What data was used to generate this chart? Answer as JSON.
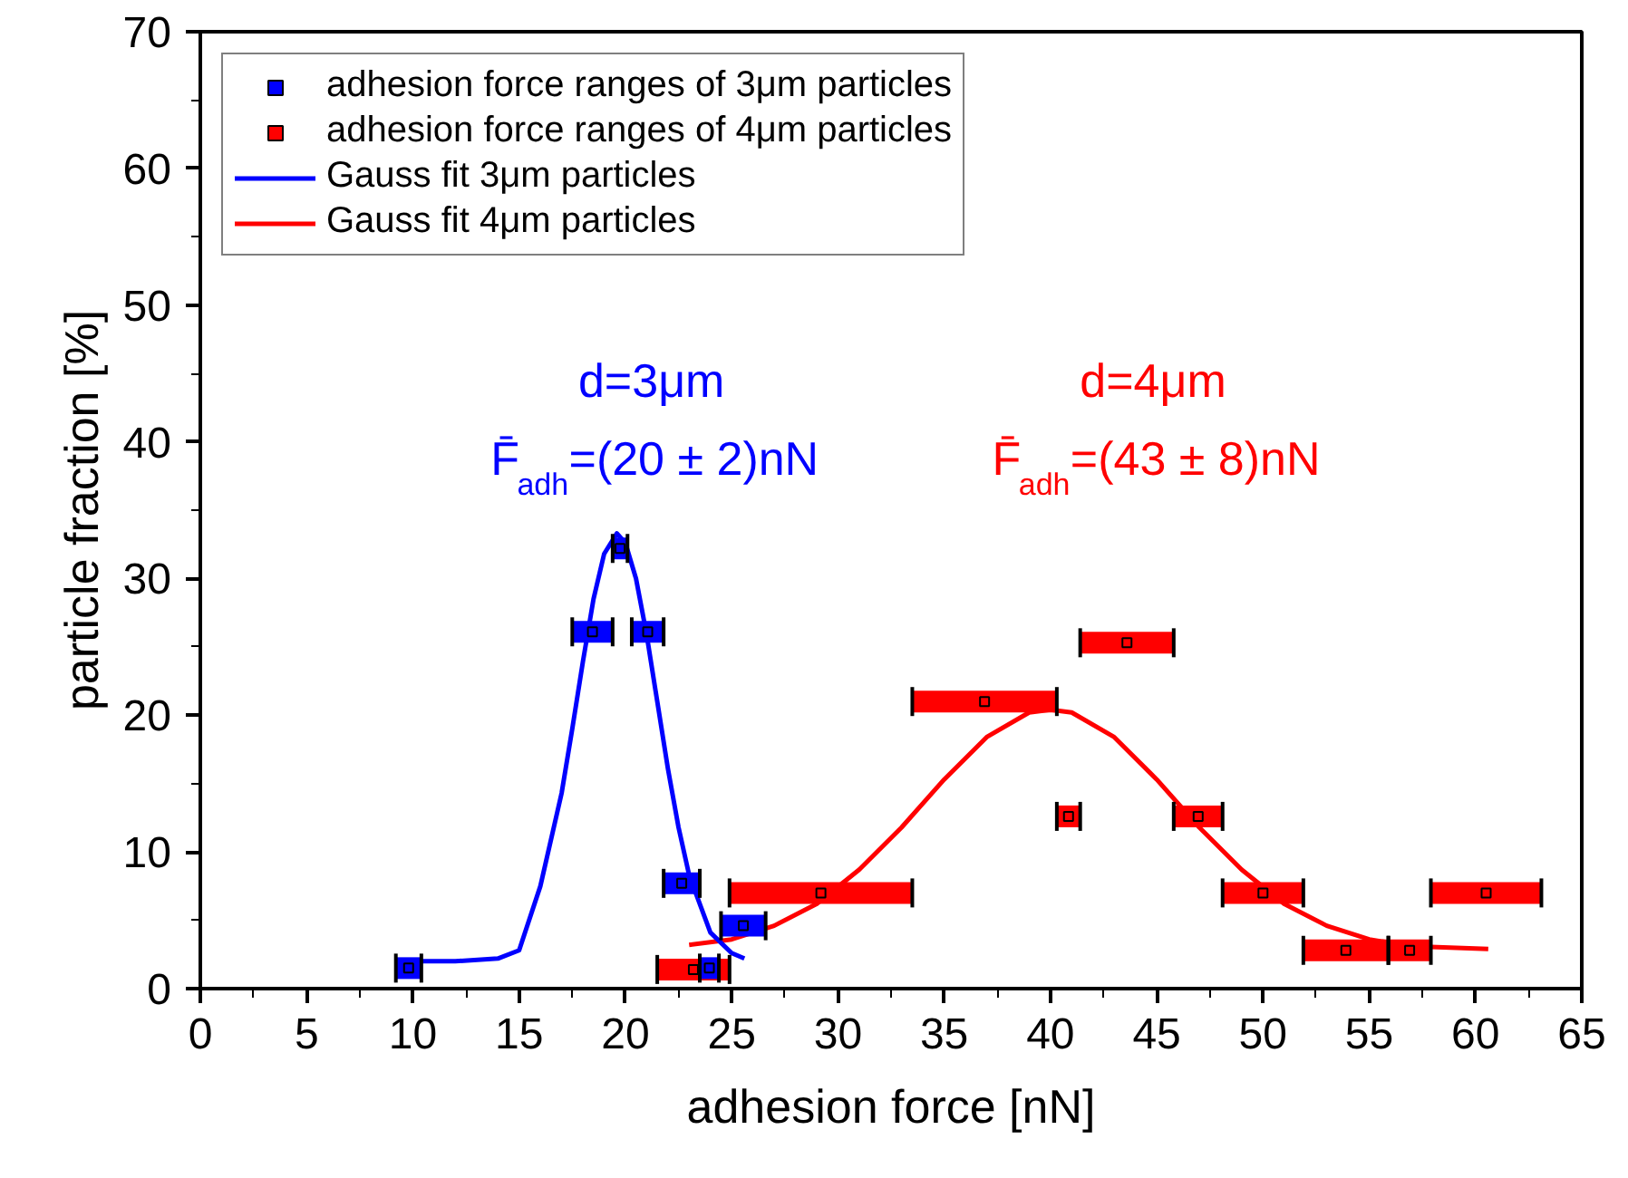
{
  "chart_data": {
    "type": "scatter",
    "xlabel": "adhesion force [nN]",
    "ylabel": "particle fraction [%]",
    "xlim": [
      0,
      65
    ],
    "xticks": [
      0,
      5,
      10,
      15,
      20,
      25,
      30,
      35,
      40,
      45,
      50,
      55,
      60,
      65
    ],
    "ylim": [
      0,
      70
    ],
    "yticks": [
      0,
      10,
      20,
      30,
      40,
      50,
      60,
      70
    ],
    "grid": false,
    "legend": "top left",
    "annotations": [
      "d=3μm",
      "F̄$_{adh}$=(20 ± 2)nN",
      "d=4μm",
      "F̄$_{adh}$=(43 ± 8)nN"
    ],
    "series": [
      {
        "name": "adhesion force ranges of 3μm particles",
        "marker": "square",
        "color": "#0000ff",
        "x": [
          9.8,
          18.45,
          19.75,
          21.05,
          22.65,
          25.55,
          23.95
        ],
        "values": [
          1.5,
          26.1,
          32.2,
          26.1,
          7.7,
          4.6,
          1.5
        ],
        "xerrors": [
          [
            9.2,
            10.4
          ],
          [
            17.5,
            19.4
          ],
          [
            19.4,
            20.1
          ],
          [
            20.3,
            21.8
          ],
          [
            21.8,
            23.5
          ],
          [
            24.5,
            26.6
          ],
          [
            23.5,
            24.4
          ]
        ]
      },
      {
        "name": "adhesion force ranges of 4μm particles",
        "marker": "square",
        "color": "#ff0000",
        "x": [
          23.2,
          29.2,
          36.9,
          43.6,
          40.85,
          46.95,
          50.0,
          53.9,
          56.9,
          60.5
        ],
        "values": [
          1.4,
          7.0,
          21.0,
          25.3,
          12.6,
          12.6,
          7.0,
          2.8,
          2.8,
          7.0
        ],
        "xerrors": [
          [
            21.5,
            24.9
          ],
          [
            24.9,
            33.5
          ],
          [
            33.5,
            40.3
          ],
          [
            41.4,
            45.8
          ],
          [
            40.3,
            41.4
          ],
          [
            45.8,
            48.1
          ],
          [
            48.1,
            51.9
          ],
          [
            51.9,
            55.9
          ],
          [
            55.9,
            57.9
          ],
          [
            57.9,
            63.1
          ]
        ]
      },
      {
        "name": "Gauss fit 3μm particles",
        "type": "line",
        "marker": "none",
        "color": "#0000ff",
        "x": [
          10,
          12,
          14,
          15,
          16,
          17,
          17.5,
          18,
          18.5,
          19,
          19.6,
          20,
          20.5,
          21,
          21.5,
          22,
          22.5,
          23,
          24,
          25,
          25.6
        ],
        "values": [
          2.0,
          2.0,
          2.2,
          2.8,
          7.5,
          14.3,
          19.0,
          23.9,
          28.5,
          31.8,
          33.3,
          32.6,
          30.0,
          25.9,
          21.0,
          16.1,
          11.8,
          8.3,
          4.1,
          2.6,
          2.2
        ]
      },
      {
        "name": "Gauss fit 4μm particles",
        "type": "line",
        "marker": "none",
        "color": "#ff0000",
        "x": [
          23,
          25,
          27,
          29,
          31,
          33,
          35,
          37,
          39,
          40,
          41,
          43,
          45,
          47,
          49,
          51,
          53,
          55,
          57,
          60.6
        ],
        "values": [
          3.2,
          3.6,
          4.6,
          6.2,
          8.7,
          11.8,
          15.3,
          18.4,
          20.2,
          20.4,
          20.2,
          18.4,
          15.3,
          11.8,
          8.7,
          6.2,
          4.6,
          3.6,
          3.1,
          2.9
        ]
      }
    ]
  }
}
